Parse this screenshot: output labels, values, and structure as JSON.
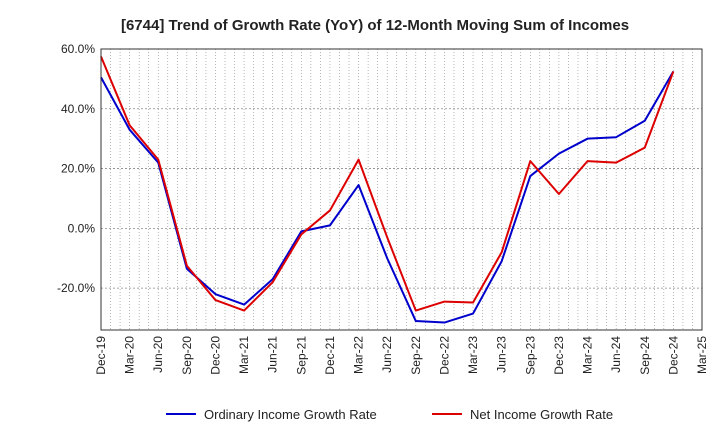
{
  "chart_data": {
    "type": "line",
    "title": "[6744]  Trend of Growth Rate (YoY) of 12-Month Moving Sum of Incomes",
    "xlabel": "",
    "ylabel": "",
    "x": [
      "Dec-19",
      "Jan-20",
      "Feb-20",
      "Mar-20",
      "Apr-20",
      "May-20",
      "Jun-20",
      "Jul-20",
      "Aug-20",
      "Sep-20",
      "Oct-20",
      "Nov-20",
      "Dec-20",
      "Jan-21",
      "Feb-21",
      "Mar-21",
      "Apr-21",
      "May-21",
      "Jun-21",
      "Jul-21",
      "Aug-21",
      "Sep-21",
      "Oct-21",
      "Nov-21",
      "Dec-21",
      "Jan-22",
      "Feb-22",
      "Mar-22",
      "Apr-22",
      "May-22",
      "Jun-22",
      "Jul-22",
      "Aug-22",
      "Sep-22",
      "Oct-22",
      "Nov-22",
      "Dec-22",
      "Jan-23",
      "Feb-23",
      "Mar-23",
      "Apr-23",
      "May-23",
      "Jun-23",
      "Jul-23",
      "Aug-23",
      "Sep-23",
      "Oct-23",
      "Nov-23",
      "Dec-23",
      "Jan-24",
      "Feb-24",
      "Mar-24",
      "Apr-24",
      "May-24",
      "Jun-24",
      "Jul-24",
      "Aug-24",
      "Sep-24",
      "Oct-24",
      "Nov-24",
      "Dec-24",
      "Jan-25",
      "Feb-25",
      "Mar-25"
    ],
    "x_tick_labels": [
      "Dec-19",
      "Mar-20",
      "Jun-20",
      "Sep-20",
      "Dec-20",
      "Mar-21",
      "Jun-21",
      "Sep-21",
      "Dec-21",
      "Mar-22",
      "Jun-22",
      "Sep-22",
      "Dec-22",
      "Mar-23",
      "Jun-23",
      "Sep-23",
      "Dec-23",
      "Mar-24",
      "Jun-24",
      "Sep-24",
      "Dec-24",
      "Mar-25"
    ],
    "y_tick_labels": [
      "60.0%",
      "40.0%",
      "20.0%",
      "0.0%",
      "-20.0%"
    ],
    "ylim": [
      -34,
      60
    ],
    "y_ticks": [
      60,
      40,
      20,
      0,
      -20
    ],
    "grid": true,
    "legend_position": "bottom",
    "series": [
      {
        "name": "Ordinary Income Growth Rate",
        "color": "#0000cc",
        "points": [
          [
            "Dec-19",
            50.5
          ],
          [
            "Mar-20",
            33.0
          ],
          [
            "Jun-20",
            22.0
          ],
          [
            "Sep-20",
            -13.5
          ],
          [
            "Dec-20",
            -22.0
          ],
          [
            "Mar-21",
            -25.5
          ],
          [
            "Jun-21",
            -17.0
          ],
          [
            "Sep-21",
            -1.0
          ],
          [
            "Dec-21",
            1.0
          ],
          [
            "Mar-22",
            14.5
          ],
          [
            "Jun-22",
            -10.0
          ],
          [
            "Sep-22",
            -31.0
          ],
          [
            "Dec-22",
            -31.5
          ],
          [
            "Mar-23",
            -28.5
          ],
          [
            "Jun-23",
            -11.0
          ],
          [
            "Sep-23",
            17.5
          ],
          [
            "Dec-23",
            25.0
          ],
          [
            "Mar-24",
            30.0
          ],
          [
            "Jun-24",
            30.5
          ],
          [
            "Sep-24",
            36.0
          ],
          [
            "Dec-24",
            52.5
          ]
        ]
      },
      {
        "name": "Net Income Growth Rate",
        "color": "#dd0000",
        "points": [
          [
            "Dec-19",
            57.5
          ],
          [
            "Mar-20",
            34.5
          ],
          [
            "Jun-20",
            23.0
          ],
          [
            "Sep-20",
            -12.5
          ],
          [
            "Dec-20",
            -24.0
          ],
          [
            "Mar-21",
            -27.5
          ],
          [
            "Jun-21",
            -18.0
          ],
          [
            "Sep-21",
            -2.0
          ],
          [
            "Dec-21",
            6.0
          ],
          [
            "Mar-22",
            23.0
          ],
          [
            "Jun-22",
            -3.0
          ],
          [
            "Sep-22",
            -27.5
          ],
          [
            "Dec-22",
            -24.5
          ],
          [
            "Mar-23",
            -24.8
          ],
          [
            "Jun-23",
            -8.0
          ],
          [
            "Sep-23",
            22.5
          ],
          [
            "Dec-23",
            11.5
          ],
          [
            "Mar-24",
            22.5
          ],
          [
            "Jun-24",
            22.0
          ],
          [
            "Sep-24",
            27.0
          ],
          [
            "Dec-24",
            52.5
          ]
        ]
      }
    ]
  }
}
